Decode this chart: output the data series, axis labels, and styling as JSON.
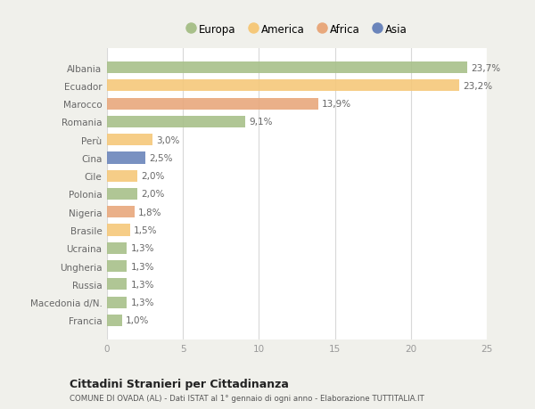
{
  "categories": [
    "Albania",
    "Ecuador",
    "Marocco",
    "Romania",
    "Perù",
    "Cina",
    "Cile",
    "Polonia",
    "Nigeria",
    "Brasile",
    "Ucraina",
    "Ungheria",
    "Russia",
    "Macedonia d/N.",
    "Francia"
  ],
  "values": [
    23.7,
    23.2,
    13.9,
    9.1,
    3.0,
    2.5,
    2.0,
    2.0,
    1.8,
    1.5,
    1.3,
    1.3,
    1.3,
    1.3,
    1.0
  ],
  "continents": [
    "Europa",
    "America",
    "Africa",
    "Europa",
    "America",
    "Asia",
    "America",
    "Europa",
    "Africa",
    "America",
    "Europa",
    "Europa",
    "Europa",
    "Europa",
    "Europa"
  ],
  "labels": [
    "23,7%",
    "23,2%",
    "13,9%",
    "9,1%",
    "3,0%",
    "2,5%",
    "2,0%",
    "2,0%",
    "1,8%",
    "1,5%",
    "1,3%",
    "1,3%",
    "1,3%",
    "1,3%",
    "1,0%"
  ],
  "continent_colors": {
    "Europa": "#a8c08a",
    "America": "#f5c87a",
    "Africa": "#e8a87c",
    "Asia": "#6b85bb"
  },
  "legend_order": [
    "Europa",
    "America",
    "Africa",
    "Asia"
  ],
  "xlim": [
    0,
    25
  ],
  "xticks": [
    0,
    5,
    10,
    15,
    20,
    25
  ],
  "title": "Cittadini Stranieri per Cittadinanza",
  "subtitle": "COMUNE DI OVADA (AL) - Dati ISTAT al 1° gennaio di ogni anno - Elaborazione TUTTITALIA.IT",
  "background_color": "#f0f0eb",
  "bar_background": "#ffffff",
  "grid_color": "#d8d8d8",
  "label_color": "#666666",
  "tick_color": "#999999"
}
